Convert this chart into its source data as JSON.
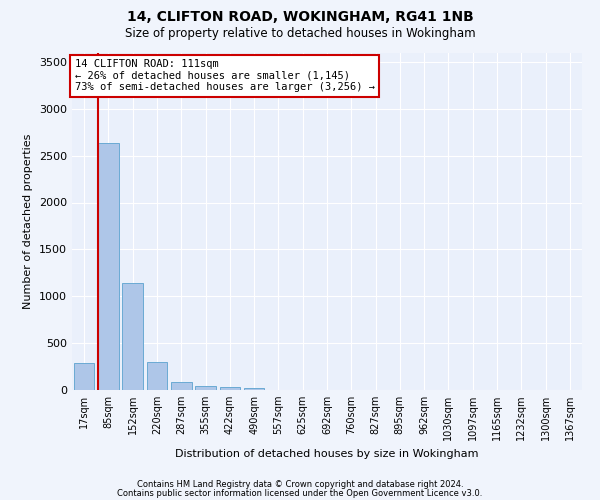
{
  "title": "14, CLIFTON ROAD, WOKINGHAM, RG41 1NB",
  "subtitle": "Size of property relative to detached houses in Wokingham",
  "xlabel": "Distribution of detached houses by size in Wokingham",
  "ylabel": "Number of detached properties",
  "annotation_line1": "14 CLIFTON ROAD: 111sqm",
  "annotation_line2": "← 26% of detached houses are smaller (1,145)",
  "annotation_line3": "73% of semi-detached houses are larger (3,256) →",
  "bin_labels": [
    "17sqm",
    "85sqm",
    "152sqm",
    "220sqm",
    "287sqm",
    "355sqm",
    "422sqm",
    "490sqm",
    "557sqm",
    "625sqm",
    "692sqm",
    "760sqm",
    "827sqm",
    "895sqm",
    "962sqm",
    "1030sqm",
    "1097sqm",
    "1165sqm",
    "1232sqm",
    "1300sqm",
    "1367sqm"
  ],
  "bar_values": [
    285,
    2640,
    1140,
    295,
    90,
    45,
    35,
    25,
    0,
    0,
    0,
    0,
    0,
    0,
    0,
    0,
    0,
    0,
    0,
    0,
    0
  ],
  "bar_color": "#aec6e8",
  "bar_edgecolor": "#6aaad4",
  "red_line_color": "#cc0000",
  "annotation_box_color": "#ffffff",
  "annotation_box_edgecolor": "#cc0000",
  "background_color": "#eaf0fb",
  "grid_color": "#ffffff",
  "ylim": [
    0,
    3600
  ],
  "yticks": [
    0,
    500,
    1000,
    1500,
    2000,
    2500,
    3000,
    3500
  ],
  "footnote1": "Contains HM Land Registry data © Crown copyright and database right 2024.",
  "footnote2": "Contains public sector information licensed under the Open Government Licence v3.0.",
  "fig_bg": "#f0f4fc"
}
